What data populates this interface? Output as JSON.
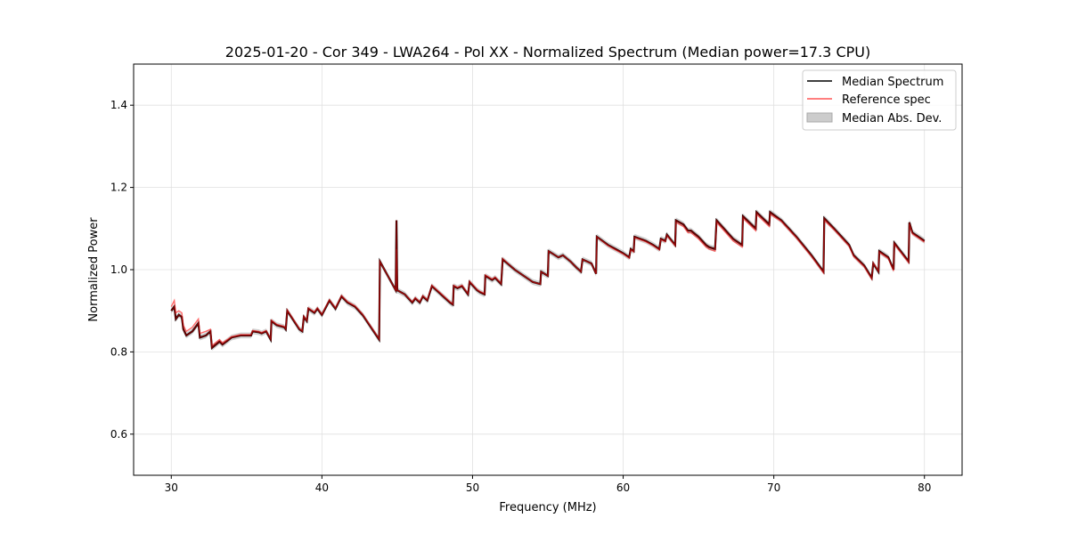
{
  "chart_data": {
    "type": "line",
    "title": "2025-01-20 - Cor 349 - LWA264 - Pol XX - Normalized Spectrum (Median power=17.3 CPU)",
    "xlabel": "Frequency (MHz)",
    "ylabel": "Normalized Power",
    "xlim": [
      27.5,
      82.5
    ],
    "ylim": [
      0.5,
      1.5
    ],
    "xticks": [
      30,
      40,
      50,
      60,
      70,
      80
    ],
    "xtick_labels": [
      "30",
      "40",
      "50",
      "60",
      "70",
      "80"
    ],
    "yticks": [
      0.6,
      0.8,
      1.0,
      1.2,
      1.4
    ],
    "ytick_labels": [
      "0.6",
      "0.8",
      "1.0",
      "1.2",
      "1.4"
    ],
    "grid": true,
    "legend_position": "top-right",
    "legend": [
      "Median Spectrum",
      "Reference spec",
      "Median Abs. Dev."
    ],
    "colors": {
      "median": "#000000",
      "reference": "#ff3b3b",
      "mad": "#b0b0b0"
    },
    "mad_halfwidth": 0.007,
    "median": [
      [
        30.0,
        0.9
      ],
      [
        30.2,
        0.91
      ],
      [
        30.3,
        0.88
      ],
      [
        30.5,
        0.89
      ],
      [
        30.7,
        0.885
      ],
      [
        30.8,
        0.855
      ],
      [
        31.0,
        0.84
      ],
      [
        31.4,
        0.85
      ],
      [
        31.8,
        0.87
      ],
      [
        31.9,
        0.835
      ],
      [
        32.3,
        0.84
      ],
      [
        32.6,
        0.85
      ],
      [
        32.7,
        0.81
      ],
      [
        33.2,
        0.825
      ],
      [
        33.4,
        0.818
      ],
      [
        34.0,
        0.835
      ],
      [
        34.6,
        0.84
      ],
      [
        35.3,
        0.84
      ],
      [
        35.4,
        0.85
      ],
      [
        35.8,
        0.848
      ],
      [
        36.0,
        0.845
      ],
      [
        36.3,
        0.85
      ],
      [
        36.6,
        0.83
      ],
      [
        36.65,
        0.875
      ],
      [
        37.0,
        0.865
      ],
      [
        37.5,
        0.86
      ],
      [
        37.6,
        0.855
      ],
      [
        37.7,
        0.9
      ],
      [
        38.5,
        0.855
      ],
      [
        38.7,
        0.85
      ],
      [
        38.8,
        0.885
      ],
      [
        39.0,
        0.875
      ],
      [
        39.1,
        0.905
      ],
      [
        39.5,
        0.895
      ],
      [
        39.7,
        0.905
      ],
      [
        40.0,
        0.89
      ],
      [
        40.5,
        0.925
      ],
      [
        40.9,
        0.905
      ],
      [
        41.3,
        0.935
      ],
      [
        41.7,
        0.92
      ],
      [
        42.2,
        0.91
      ],
      [
        42.7,
        0.89
      ],
      [
        43.8,
        0.83
      ],
      [
        43.85,
        1.02
      ],
      [
        44.9,
        0.95
      ],
      [
        44.95,
        1.12
      ],
      [
        45.0,
        0.95
      ],
      [
        45.5,
        0.94
      ],
      [
        46.0,
        0.92
      ],
      [
        46.2,
        0.93
      ],
      [
        46.5,
        0.92
      ],
      [
        46.7,
        0.935
      ],
      [
        47.0,
        0.925
      ],
      [
        47.3,
        0.96
      ],
      [
        47.9,
        0.94
      ],
      [
        48.5,
        0.92
      ],
      [
        48.7,
        0.915
      ],
      [
        48.75,
        0.96
      ],
      [
        49.0,
        0.955
      ],
      [
        49.3,
        0.96
      ],
      [
        49.7,
        0.94
      ],
      [
        49.8,
        0.97
      ],
      [
        50.3,
        0.95
      ],
      [
        50.5,
        0.945
      ],
      [
        50.8,
        0.94
      ],
      [
        50.85,
        0.985
      ],
      [
        51.3,
        0.975
      ],
      [
        51.5,
        0.98
      ],
      [
        51.9,
        0.965
      ],
      [
        52.0,
        1.025
      ],
      [
        52.8,
        1.0
      ],
      [
        54.0,
        0.97
      ],
      [
        54.5,
        0.965
      ],
      [
        54.55,
        0.995
      ],
      [
        55.0,
        0.985
      ],
      [
        55.05,
        1.045
      ],
      [
        55.7,
        1.03
      ],
      [
        56.0,
        1.035
      ],
      [
        56.5,
        1.02
      ],
      [
        56.9,
        1.005
      ],
      [
        57.2,
        0.995
      ],
      [
        57.3,
        1.025
      ],
      [
        57.6,
        1.02
      ],
      [
        57.9,
        1.015
      ],
      [
        58.2,
        0.99
      ],
      [
        58.25,
        1.08
      ],
      [
        59.0,
        1.06
      ],
      [
        59.5,
        1.05
      ],
      [
        60.0,
        1.04
      ],
      [
        60.4,
        1.03
      ],
      [
        60.5,
        1.05
      ],
      [
        60.7,
        1.045
      ],
      [
        60.75,
        1.08
      ],
      [
        61.5,
        1.07
      ],
      [
        62.0,
        1.06
      ],
      [
        62.4,
        1.05
      ],
      [
        62.5,
        1.075
      ],
      [
        62.8,
        1.07
      ],
      [
        62.9,
        1.085
      ],
      [
        63.45,
        1.06
      ],
      [
        63.5,
        1.12
      ],
      [
        64.0,
        1.11
      ],
      [
        64.3,
        1.095
      ],
      [
        64.5,
        1.095
      ],
      [
        65.0,
        1.08
      ],
      [
        65.5,
        1.06
      ],
      [
        65.7,
        1.055
      ],
      [
        66.1,
        1.05
      ],
      [
        66.2,
        1.12
      ],
      [
        67.3,
        1.075
      ],
      [
        67.9,
        1.06
      ],
      [
        67.95,
        1.13
      ],
      [
        68.8,
        1.1
      ],
      [
        68.85,
        1.14
      ],
      [
        69.7,
        1.11
      ],
      [
        69.75,
        1.14
      ],
      [
        70.5,
        1.12
      ],
      [
        71.5,
        1.08
      ],
      [
        72.5,
        1.035
      ],
      [
        73.3,
        0.995
      ],
      [
        73.35,
        1.125
      ],
      [
        74.0,
        1.1
      ],
      [
        75.0,
        1.06
      ],
      [
        75.3,
        1.035
      ],
      [
        76.0,
        1.01
      ],
      [
        76.5,
        0.98
      ],
      [
        76.6,
        1.015
      ],
      [
        76.95,
        0.995
      ],
      [
        77.0,
        1.045
      ],
      [
        77.6,
        1.03
      ],
      [
        77.95,
        1.0
      ],
      [
        78.0,
        1.065
      ],
      [
        78.95,
        1.02
      ],
      [
        79.0,
        1.115
      ],
      [
        79.2,
        1.09
      ],
      [
        80.0,
        1.07
      ]
    ],
    "reference": [
      [
        30.0,
        0.91
      ],
      [
        30.2,
        0.925
      ],
      [
        30.3,
        0.895
      ],
      [
        30.5,
        0.9
      ],
      [
        30.7,
        0.895
      ],
      [
        30.8,
        0.865
      ],
      [
        31.0,
        0.85
      ],
      [
        31.4,
        0.86
      ],
      [
        31.8,
        0.88
      ],
      [
        31.9,
        0.845
      ],
      [
        32.3,
        0.85
      ],
      [
        32.6,
        0.855
      ],
      [
        32.7,
        0.815
      ],
      [
        33.2,
        0.83
      ],
      [
        33.4,
        0.822
      ],
      [
        34.0,
        0.837
      ],
      [
        34.6,
        0.842
      ],
      [
        35.3,
        0.842
      ],
      [
        35.4,
        0.852
      ],
      [
        35.8,
        0.85
      ],
      [
        36.0,
        0.847
      ],
      [
        36.3,
        0.852
      ],
      [
        36.6,
        0.832
      ],
      [
        36.65,
        0.877
      ],
      [
        37.0,
        0.867
      ],
      [
        37.5,
        0.862
      ],
      [
        37.6,
        0.857
      ],
      [
        37.7,
        0.902
      ],
      [
        38.5,
        0.857
      ],
      [
        38.7,
        0.852
      ],
      [
        38.8,
        0.887
      ],
      [
        39.0,
        0.877
      ],
      [
        39.1,
        0.907
      ],
      [
        39.5,
        0.897
      ],
      [
        39.7,
        0.907
      ],
      [
        40.0,
        0.892
      ],
      [
        40.5,
        0.927
      ],
      [
        40.9,
        0.907
      ],
      [
        41.3,
        0.937
      ],
      [
        41.7,
        0.922
      ],
      [
        42.2,
        0.912
      ],
      [
        42.7,
        0.892
      ],
      [
        43.8,
        0.832
      ],
      [
        43.85,
        1.02
      ],
      [
        44.9,
        0.95
      ],
      [
        44.95,
        1.05
      ],
      [
        45.0,
        0.95
      ],
      [
        45.5,
        0.94
      ],
      [
        46.0,
        0.922
      ],
      [
        46.2,
        0.932
      ],
      [
        46.5,
        0.922
      ],
      [
        46.7,
        0.937
      ],
      [
        47.0,
        0.927
      ],
      [
        47.3,
        0.962
      ],
      [
        47.9,
        0.942
      ],
      [
        48.5,
        0.922
      ],
      [
        48.7,
        0.917
      ],
      [
        48.75,
        0.962
      ],
      [
        49.0,
        0.957
      ],
      [
        49.3,
        0.962
      ],
      [
        49.7,
        0.942
      ],
      [
        49.8,
        0.972
      ],
      [
        50.3,
        0.952
      ],
      [
        50.5,
        0.947
      ],
      [
        50.8,
        0.942
      ],
      [
        50.85,
        0.987
      ],
      [
        51.3,
        0.977
      ],
      [
        51.5,
        0.982
      ],
      [
        51.9,
        0.967
      ],
      [
        52.0,
        1.027
      ],
      [
        52.8,
        1.0
      ],
      [
        54.0,
        0.97
      ],
      [
        54.5,
        0.965
      ],
      [
        54.55,
        0.995
      ],
      [
        55.0,
        0.985
      ],
      [
        55.05,
        1.045
      ],
      [
        55.7,
        1.03
      ],
      [
        56.0,
        1.035
      ],
      [
        56.5,
        1.02
      ],
      [
        56.9,
        1.005
      ],
      [
        57.2,
        0.995
      ],
      [
        57.3,
        1.025
      ],
      [
        57.6,
        1.02
      ],
      [
        57.9,
        1.015
      ],
      [
        58.2,
        0.99
      ],
      [
        58.25,
        1.08
      ],
      [
        59.0,
        1.058
      ],
      [
        59.5,
        1.048
      ],
      [
        60.0,
        1.038
      ],
      [
        60.4,
        1.028
      ],
      [
        60.5,
        1.048
      ],
      [
        60.7,
        1.043
      ],
      [
        60.75,
        1.078
      ],
      [
        61.5,
        1.068
      ],
      [
        62.0,
        1.058
      ],
      [
        62.4,
        1.048
      ],
      [
        62.5,
        1.073
      ],
      [
        62.8,
        1.068
      ],
      [
        62.9,
        1.083
      ],
      [
        63.45,
        1.058
      ],
      [
        63.5,
        1.115
      ],
      [
        64.0,
        1.105
      ],
      [
        64.3,
        1.09
      ],
      [
        64.5,
        1.09
      ],
      [
        65.0,
        1.075
      ],
      [
        65.5,
        1.055
      ],
      [
        65.7,
        1.05
      ],
      [
        66.1,
        1.045
      ],
      [
        66.2,
        1.115
      ],
      [
        67.3,
        1.07
      ],
      [
        67.9,
        1.055
      ],
      [
        67.95,
        1.125
      ],
      [
        68.8,
        1.095
      ],
      [
        68.85,
        1.135
      ],
      [
        69.7,
        1.105
      ],
      [
        69.75,
        1.135
      ],
      [
        70.5,
        1.117
      ],
      [
        71.5,
        1.077
      ],
      [
        72.5,
        1.032
      ],
      [
        73.3,
        0.992
      ],
      [
        73.35,
        1.12
      ],
      [
        74.0,
        1.097
      ],
      [
        75.0,
        1.057
      ],
      [
        75.3,
        1.032
      ],
      [
        76.0,
        1.007
      ],
      [
        76.5,
        0.977
      ],
      [
        76.6,
        1.017
      ],
      [
        76.95,
        0.997
      ],
      [
        77.0,
        1.042
      ],
      [
        77.6,
        1.027
      ],
      [
        77.95,
        0.997
      ],
      [
        78.0,
        1.062
      ],
      [
        78.95,
        1.017
      ],
      [
        79.0,
        1.11
      ],
      [
        79.2,
        1.087
      ],
      [
        80.0,
        1.067
      ]
    ]
  }
}
